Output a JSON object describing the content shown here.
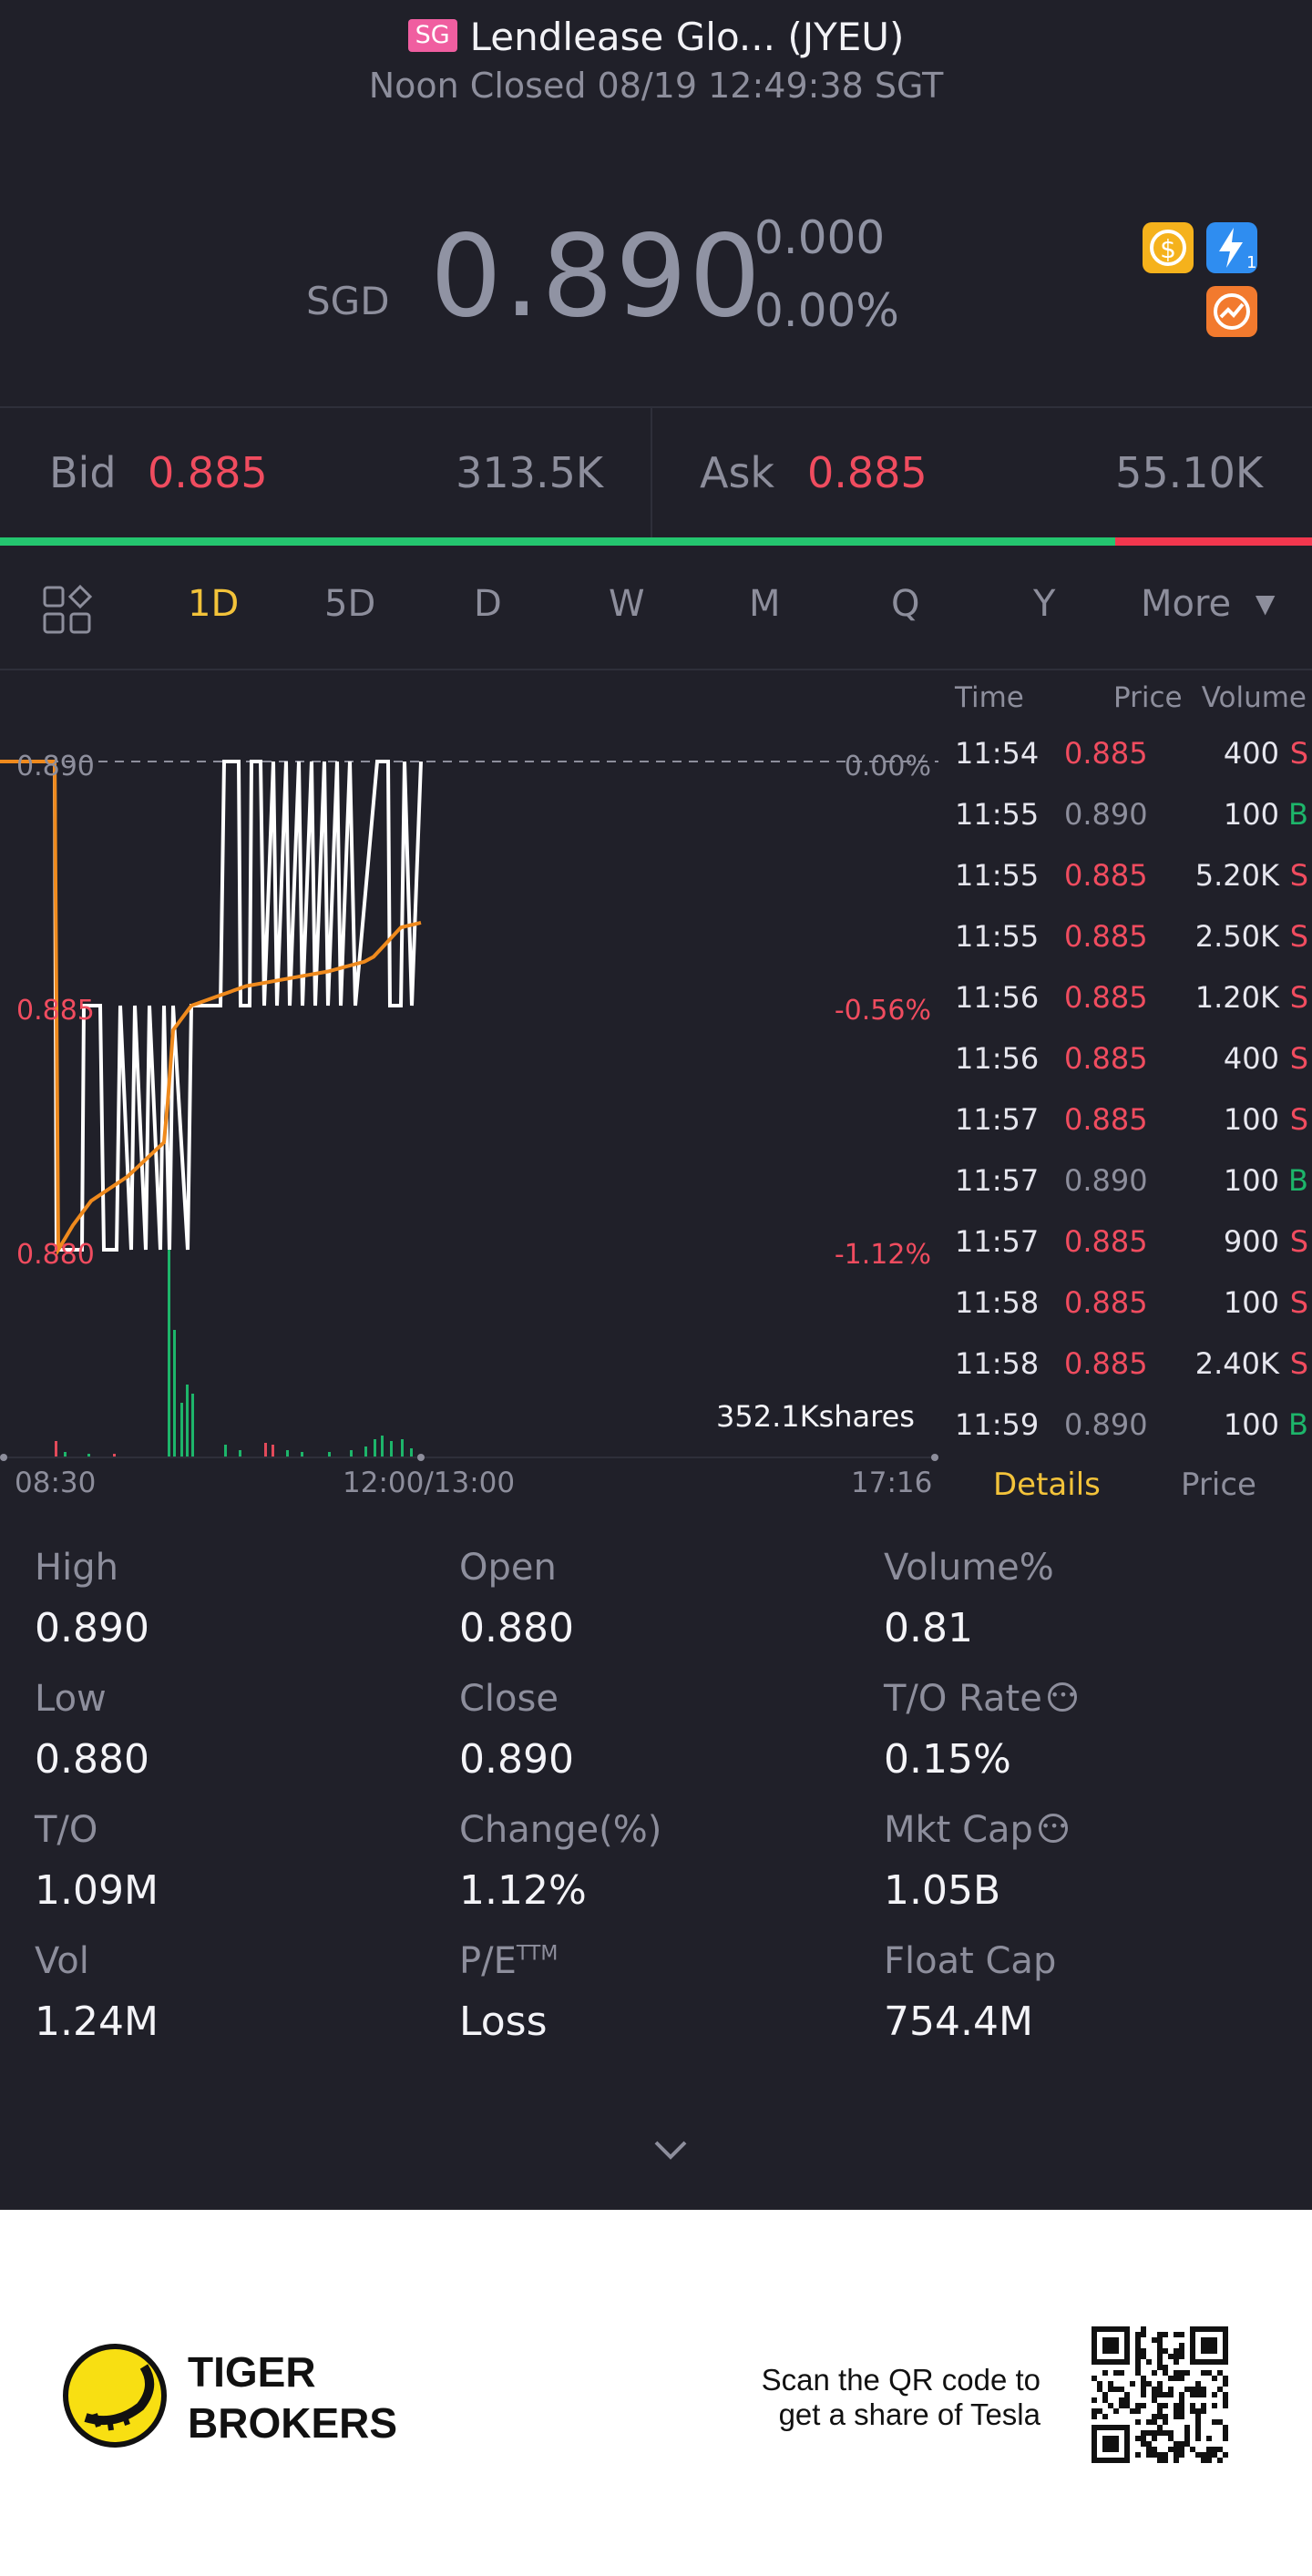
{
  "header": {
    "market_badge": "SG",
    "title": "Lendlease Glo... (JYEU)",
    "status": "Noon Closed 08/19 12:49:38 SGT"
  },
  "quote": {
    "currency": "SGD",
    "price": "0.890",
    "change": "0.000",
    "change_pct": "0.00%",
    "icons": [
      "dollar-icon",
      "flash-icon",
      "orange-chart-icon"
    ]
  },
  "orderbook": {
    "bid_label": "Bid",
    "bid_price": "0.885",
    "bid_size": "313.5K",
    "ask_label": "Ask",
    "ask_price": "0.885",
    "ask_size": "55.10K",
    "bid_ratio": 0.85
  },
  "tabs": {
    "items": [
      "1D",
      "5D",
      "D",
      "W",
      "M",
      "Q",
      "Y"
    ],
    "active": "1D",
    "more": "More"
  },
  "chart": {
    "y_left": [
      "0.890",
      "0.885",
      "0.880"
    ],
    "y_right": [
      "0.00%",
      "-0.56%",
      "-1.12%"
    ],
    "x_labels": [
      "08:30",
      "12:00/13:00",
      "17:16"
    ],
    "volume_label": "352.1Kshares"
  },
  "chart_data": {
    "type": "line",
    "title": "",
    "ylim": [
      0.88,
      0.89
    ],
    "series": [
      {
        "values": [
          0.89,
          0.89,
          0.89,
          0.88,
          0.88,
          0.885,
          0.885,
          0.88,
          0.88,
          0.885,
          0.88,
          0.885,
          0.88,
          0.885,
          0.88,
          0.885,
          0.88,
          0.885,
          0.88,
          0.885,
          0.885,
          0.885,
          0.89,
          0.89,
          0.885,
          0.885,
          0.89,
          0.89,
          0.885,
          0.89,
          0.885,
          0.89,
          0.885,
          0.89,
          0.885,
          0.89,
          0.885,
          0.89,
          0.885,
          0.89,
          0.885,
          0.89,
          0.885,
          0.89,
          0.89,
          0.89,
          0.885,
          0.885,
          0.89,
          0.885,
          0.89
        ]
      },
      {
        "values": [
          0.89,
          0.89,
          0.89,
          0.88,
          0.8805,
          0.881,
          0.8815,
          0.8822,
          0.883,
          0.8845,
          0.885,
          0.8852,
          0.8854,
          0.8855,
          0.8856,
          0.8857,
          0.8858,
          0.8859,
          0.886,
          0.8862,
          0.8866,
          0.8867
        ]
      }
    ]
  },
  "trades": {
    "headers": [
      "Time",
      "Price",
      "Volume"
    ],
    "rows": [
      {
        "time": "11:54",
        "price": "0.885",
        "vol": "400",
        "side": "S"
      },
      {
        "time": "11:55",
        "price": "0.890",
        "vol": "100",
        "side": "B"
      },
      {
        "time": "11:55",
        "price": "0.885",
        "vol": "5.20K",
        "side": "S"
      },
      {
        "time": "11:55",
        "price": "0.885",
        "vol": "2.50K",
        "side": "S"
      },
      {
        "time": "11:56",
        "price": "0.885",
        "vol": "1.20K",
        "side": "S"
      },
      {
        "time": "11:56",
        "price": "0.885",
        "vol": "400",
        "side": "S"
      },
      {
        "time": "11:57",
        "price": "0.885",
        "vol": "100",
        "side": "S"
      },
      {
        "time": "11:57",
        "price": "0.890",
        "vol": "100",
        "side": "B"
      },
      {
        "time": "11:57",
        "price": "0.885",
        "vol": "900",
        "side": "S"
      },
      {
        "time": "11:58",
        "price": "0.885",
        "vol": "100",
        "side": "S"
      },
      {
        "time": "11:58",
        "price": "0.885",
        "vol": "2.40K",
        "side": "S"
      },
      {
        "time": "11:59",
        "price": "0.890",
        "vol": "100",
        "side": "B"
      }
    ],
    "tab_details": "Details",
    "tab_price": "Price"
  },
  "stats": {
    "high_label": "High",
    "high": "0.890",
    "open_label": "Open",
    "open": "0.880",
    "volpct_label": "Volume%",
    "volpct": "0.81",
    "low_label": "Low",
    "low": "0.880",
    "close_label": "Close",
    "close": "0.890",
    "torate_label": "T/O Rate",
    "torate": "0.15%",
    "to_label": "T/O",
    "to": "1.09M",
    "changepct_label": "Change(%)",
    "changepct": "1.12%",
    "mktcap_label": "Mkt Cap",
    "mktcap": "1.05B",
    "vol_label": "Vol",
    "vol": "1.24M",
    "pe_label": "P/E",
    "pe_sup": "TTM",
    "pe": "Loss",
    "floatcap_label": "Float Cap",
    "floatcap": "754.4M"
  },
  "footer": {
    "brand_line1": "TIGER",
    "brand_line2": "BROKERS",
    "scan_line1": "Scan the QR code to",
    "scan_line2": "get a share of Tesla"
  }
}
